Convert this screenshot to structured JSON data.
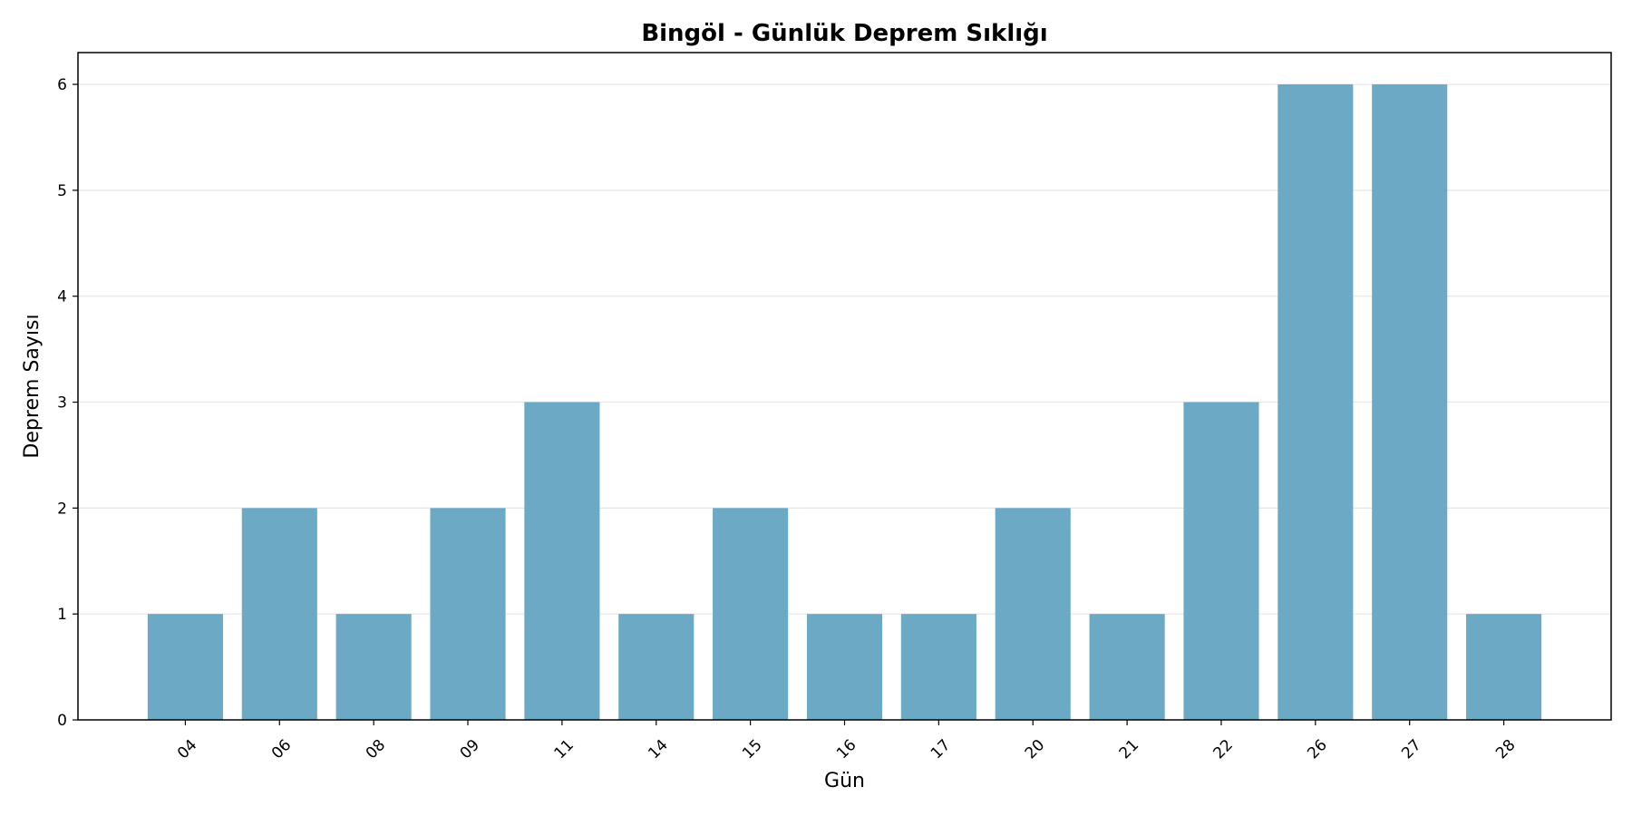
{
  "chart_data": {
    "type": "bar",
    "title": "Bingöl - Günlük Deprem Sıklığı",
    "xlabel": "Gün",
    "ylabel": "Deprem Sayısı",
    "categories": [
      "04",
      "06",
      "08",
      "09",
      "11",
      "14",
      "15",
      "16",
      "17",
      "20",
      "21",
      "22",
      "26",
      "27",
      "28"
    ],
    "values": [
      1,
      2,
      1,
      2,
      3,
      1,
      2,
      1,
      1,
      2,
      1,
      3,
      6,
      6,
      1
    ],
    "ylim": [
      0,
      6.3
    ],
    "yticks": [
      0,
      1,
      2,
      3,
      4,
      5,
      6
    ],
    "grid": "y",
    "legend": "none",
    "bar_color": "#6ba9c4",
    "grid_color": "#e6e6e6"
  }
}
